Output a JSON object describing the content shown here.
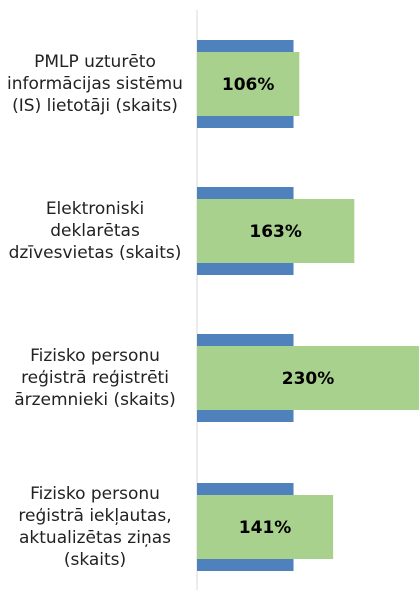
{
  "chart_data": {
    "type": "bar",
    "orientation": "horizontal",
    "categories": [
      "PMLP uzturēto informācijas sistēmu (IS) lietotāji (skaits)",
      "Elektroniski deklarētas dzīvesvietas (skaits)",
      "Fizisko personu reģistrā reģistrēti ārzemnieki (skaits)",
      "Fizisko personu reģistrā iekļautas, aktualizētas ziņas (skaits)"
    ],
    "series": [
      {
        "color": "#4f81bd",
        "values": [
          100,
          100,
          100,
          100
        ]
      },
      {
        "color": "#a9d18e",
        "values": [
          106,
          163,
          230,
          141
        ],
        "value_labels": [
          "106%",
          "163%",
          "230%",
          "141%"
        ]
      }
    ],
    "xlim": [
      0,
      230
    ]
  }
}
